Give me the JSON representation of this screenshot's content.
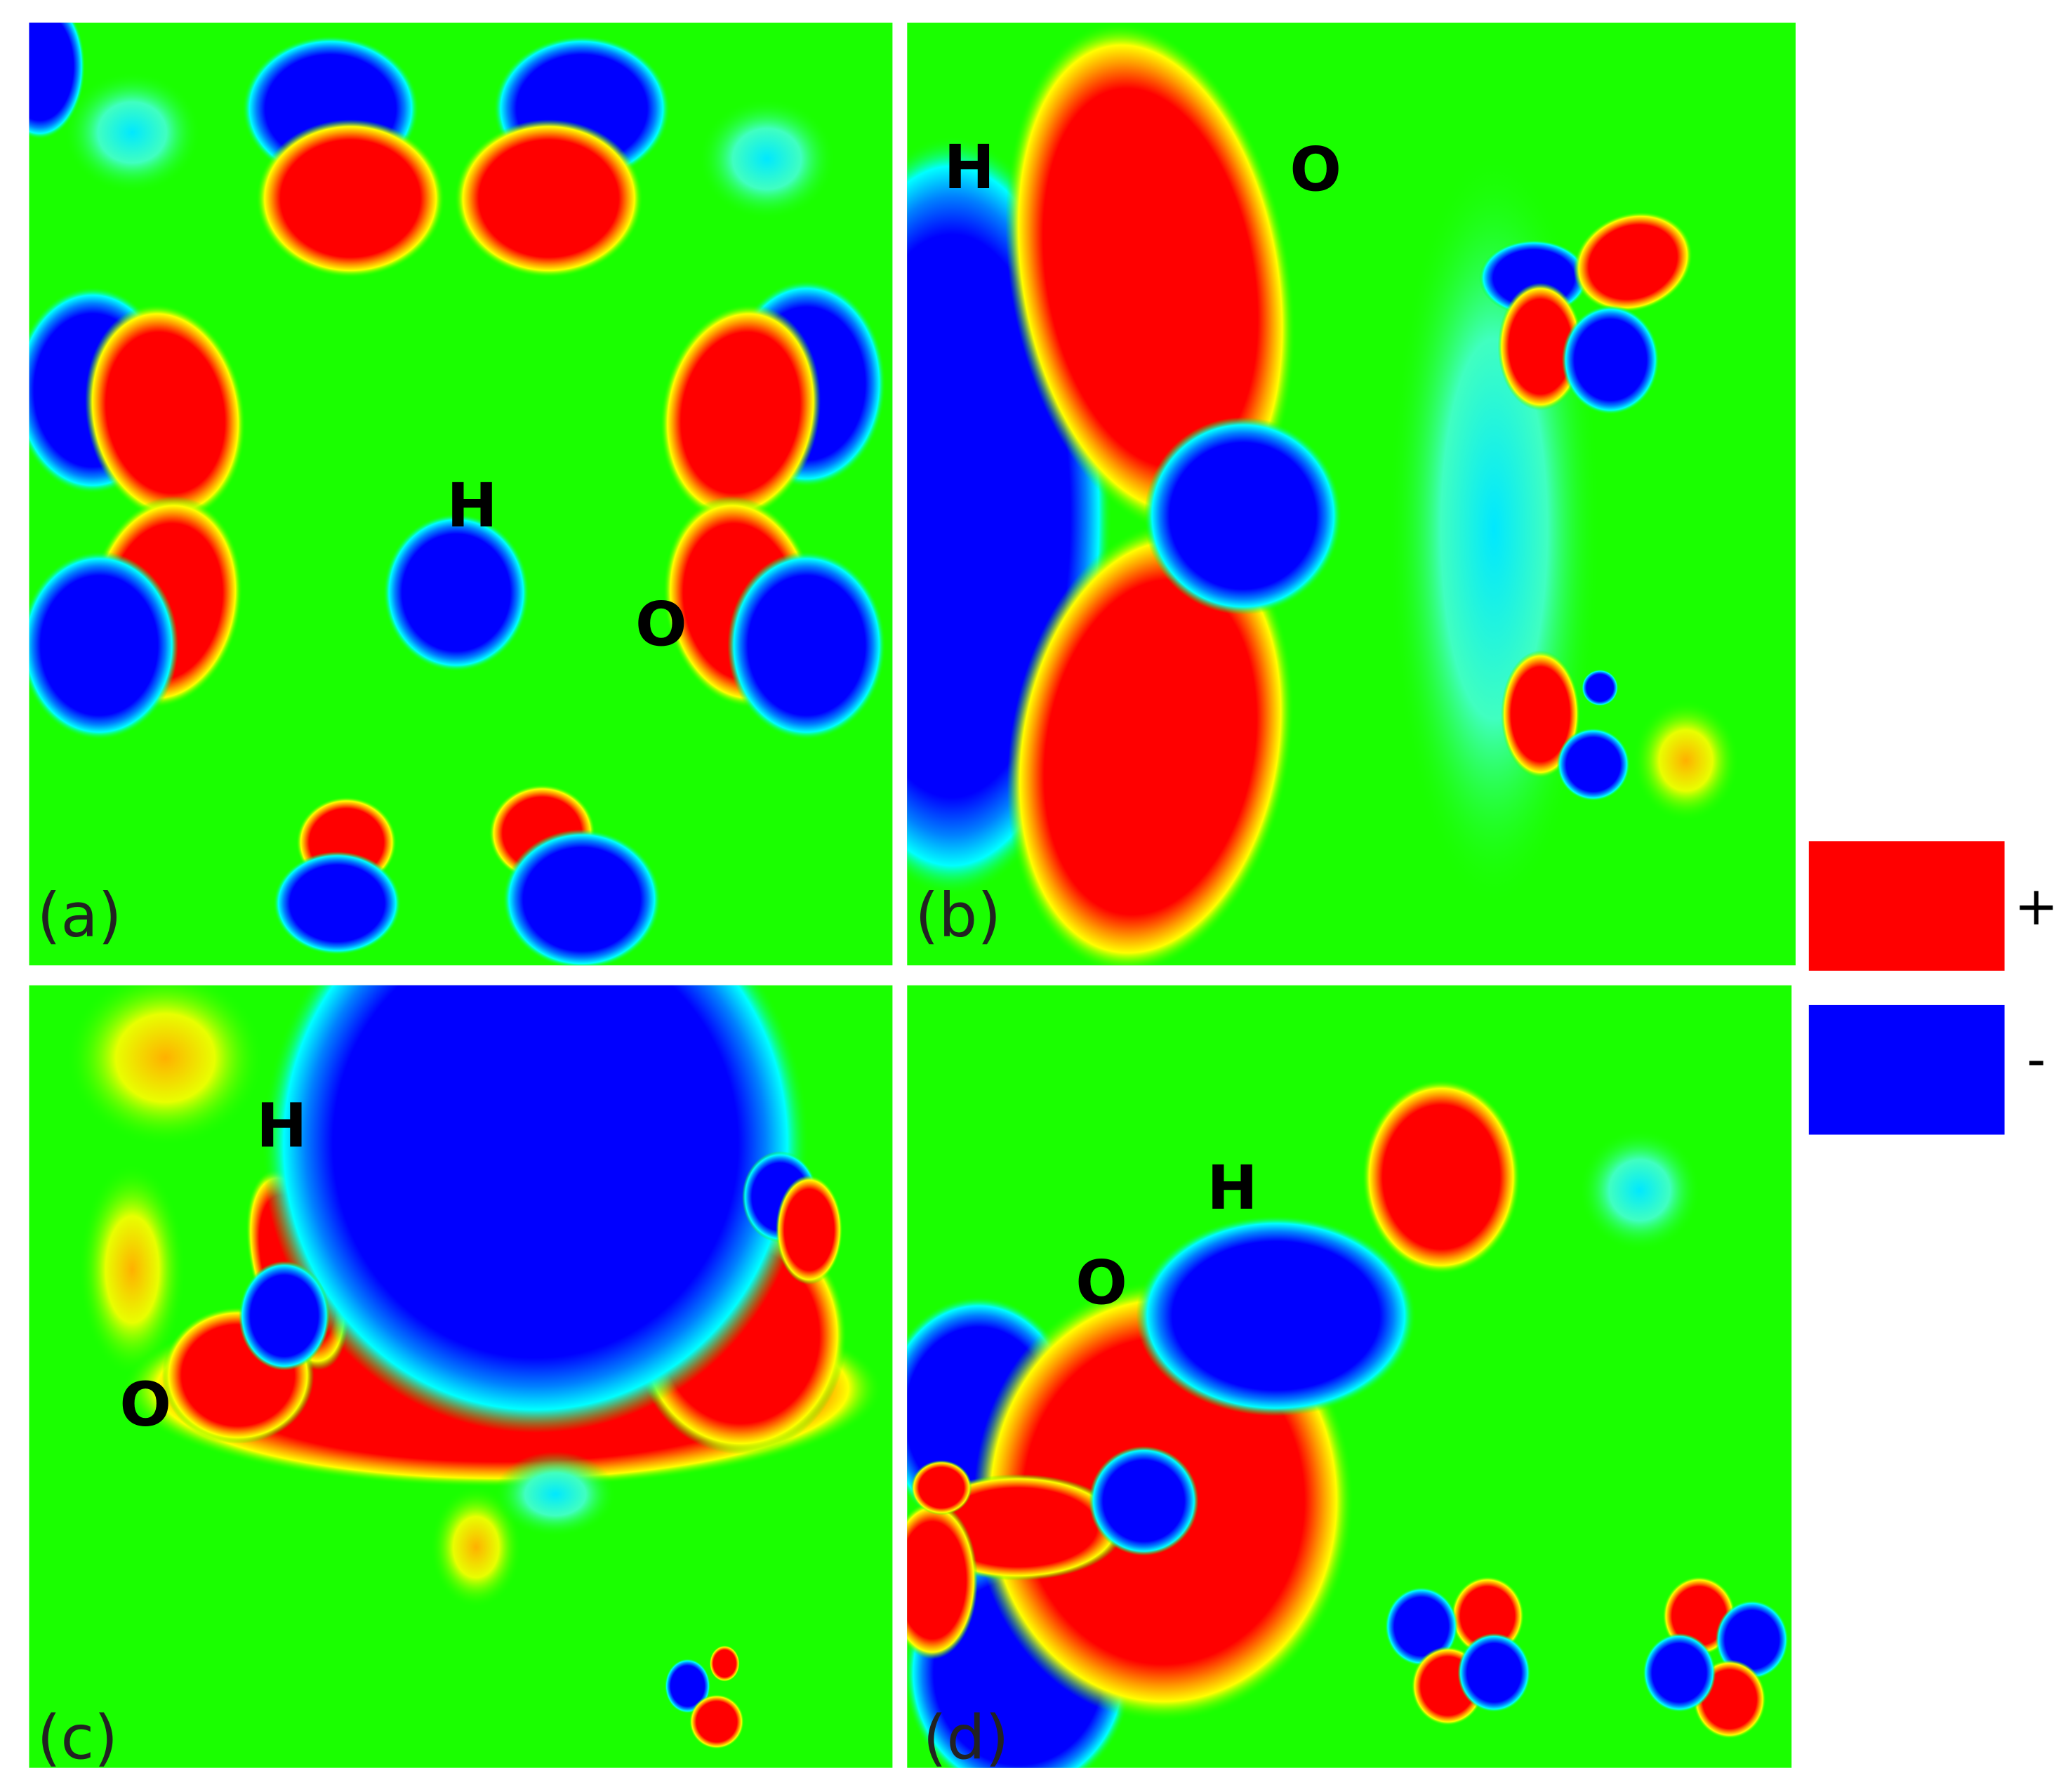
{
  "panels": [
    {
      "label": "(a)",
      "atoms": [
        "H",
        "O"
      ]
    },
    {
      "label": "(b)",
      "atoms": [
        "H",
        "O"
      ]
    },
    {
      "label": "(c)",
      "atoms": [
        "H",
        "O"
      ]
    },
    {
      "label": "(d)",
      "atoms": [
        "H",
        "O"
      ]
    }
  ],
  "legend": [
    {
      "label": "+"
    },
    {
      "label": "-"
    }
  ]
}
